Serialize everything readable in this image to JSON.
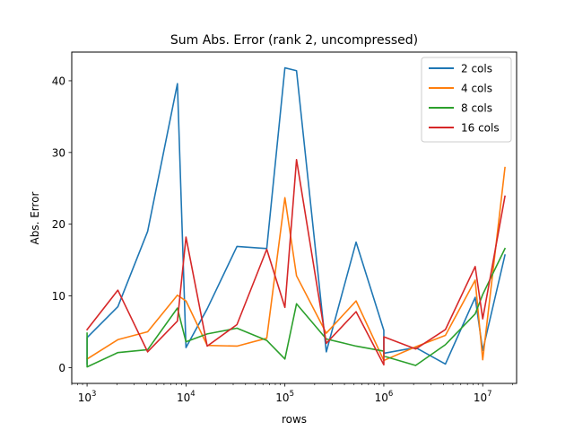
{
  "chart_data": {
    "type": "line",
    "title": "Sum Abs. Error (rank 2, uncompressed)",
    "xlabel": "rows",
    "ylabel": "Abs. Error",
    "xscale": "log",
    "xlim": [
      700,
      22000000
    ],
    "ylim": [
      -2.2,
      44
    ],
    "yticks": [
      0,
      10,
      20,
      30,
      40
    ],
    "xticks": [
      {
        "value": 1000,
        "base": "10",
        "exp": "3"
      },
      {
        "value": 10000,
        "base": "10",
        "exp": "4"
      },
      {
        "value": 100000,
        "base": "10",
        "exp": "5"
      },
      {
        "value": 1000000,
        "base": "10",
        "exp": "6"
      },
      {
        "value": 10000000,
        "base": "10",
        "exp": "7"
      }
    ],
    "grid": false,
    "legend_position": "top-right",
    "series": [
      {
        "name": "2 cols",
        "color": "#1f77b4",
        "points": [
          [
            1000,
            0.5
          ],
          [
            1001,
            4.2
          ],
          [
            2048,
            8.5
          ],
          [
            4096,
            19.0
          ],
          [
            8192,
            39.6
          ],
          [
            10000,
            2.8
          ],
          [
            16384,
            8.2
          ],
          [
            32768,
            16.9
          ],
          [
            65536,
            16.6
          ],
          [
            100000,
            41.8
          ],
          [
            131072,
            41.4
          ],
          [
            262144,
            2.2
          ],
          [
            524288,
            17.5
          ],
          [
            1000000,
            5.2
          ],
          [
            1001000,
            2.0
          ],
          [
            2097152,
            2.8
          ],
          [
            4194304,
            0.5
          ],
          [
            8388608,
            9.8
          ],
          [
            10000000,
            2.4
          ],
          [
            16777216,
            15.7
          ]
        ]
      },
      {
        "name": "4 cols",
        "color": "#ff7f0e",
        "points": [
          [
            1000,
            1.2
          ],
          [
            2048,
            3.9
          ],
          [
            4096,
            5.0
          ],
          [
            8192,
            10.1
          ],
          [
            10000,
            9.3
          ],
          [
            16384,
            3.1
          ],
          [
            32768,
            3.0
          ],
          [
            65536,
            4.1
          ],
          [
            100000,
            23.7
          ],
          [
            131072,
            12.8
          ],
          [
            262144,
            4.8
          ],
          [
            524288,
            9.3
          ],
          [
            1000000,
            1.0
          ],
          [
            2097152,
            2.9
          ],
          [
            4194304,
            4.5
          ],
          [
            8388608,
            12.2
          ],
          [
            10000000,
            1.1
          ],
          [
            16777216,
            27.9
          ]
        ]
      },
      {
        "name": "8 cols",
        "color": "#2ca02c",
        "points": [
          [
            1000,
            4.8
          ],
          [
            1001,
            0.1
          ],
          [
            2048,
            2.1
          ],
          [
            4096,
            2.5
          ],
          [
            8192,
            8.3
          ],
          [
            10000,
            3.6
          ],
          [
            16384,
            4.7
          ],
          [
            32768,
            5.5
          ],
          [
            65536,
            3.8
          ],
          [
            100000,
            1.2
          ],
          [
            131072,
            8.9
          ],
          [
            262144,
            4.0
          ],
          [
            524288,
            3.0
          ],
          [
            1000000,
            2.3
          ],
          [
            1001000,
            1.6
          ],
          [
            2097152,
            0.3
          ],
          [
            4194304,
            3.2
          ],
          [
            8388608,
            7.5
          ],
          [
            10000000,
            10.2
          ],
          [
            16777216,
            16.6
          ]
        ]
      },
      {
        "name": "16 cols",
        "color": "#d62728",
        "points": [
          [
            1000,
            5.3
          ],
          [
            2048,
            10.8
          ],
          [
            4096,
            2.2
          ],
          [
            8192,
            6.5
          ],
          [
            10000,
            18.2
          ],
          [
            16384,
            3.0
          ],
          [
            32768,
            6.0
          ],
          [
            65536,
            16.5
          ],
          [
            100000,
            8.4
          ],
          [
            131072,
            29.0
          ],
          [
            262144,
            3.4
          ],
          [
            524288,
            7.8
          ],
          [
            1000000,
            0.4
          ],
          [
            1001000,
            4.3
          ],
          [
            2097152,
            2.6
          ],
          [
            4194304,
            5.3
          ],
          [
            8388608,
            14.1
          ],
          [
            10000000,
            6.8
          ],
          [
            16777216,
            23.9
          ]
        ]
      }
    ]
  }
}
